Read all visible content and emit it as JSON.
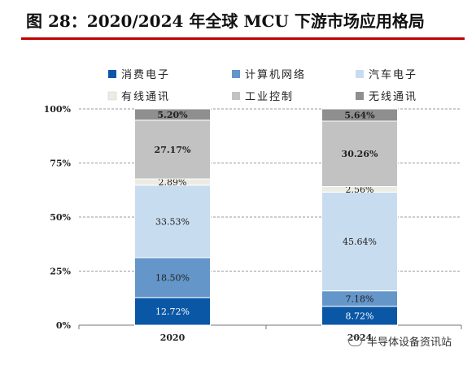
{
  "title": "图 28：2020/2024 年全球 MCU 下游市场应用格局",
  "watermark": "半导体设备资讯站",
  "chart_data": {
    "type": "bar",
    "stacked": true,
    "categories": [
      "2020",
      "2024"
    ],
    "ylim": [
      0,
      100
    ],
    "yticks": [
      "0%",
      "25%",
      "50%",
      "75%",
      "100%"
    ],
    "grid": true,
    "legend_position": "top",
    "series": [
      {
        "name": "消费电子",
        "values": [
          12.72,
          8.72
        ],
        "labels": [
          "12.72%",
          "8.72%"
        ],
        "color": "#0a57a6"
      },
      {
        "name": "计算机网络",
        "values": [
          18.5,
          7.18
        ],
        "labels": [
          "18.50%",
          "7.18%"
        ],
        "color": "#6496c9"
      },
      {
        "name": "汽车电子",
        "values": [
          33.53,
          45.64
        ],
        "labels": [
          "33.53%",
          "45.64%"
        ],
        "color": "#c8dcef"
      },
      {
        "name": "有线通讯",
        "values": [
          2.89,
          2.56
        ],
        "labels": [
          "2.89%",
          "2.56%"
        ],
        "color": "#ecece4"
      },
      {
        "name": "工业控制",
        "values": [
          27.17,
          30.26
        ],
        "labels": [
          "27.17%",
          "30.26%"
        ],
        "color": "#c2c2c2"
      },
      {
        "name": "无线通讯",
        "values": [
          5.2,
          5.64
        ],
        "labels": [
          "5.20%",
          "5.64%"
        ],
        "color": "#8f8f8f"
      }
    ]
  }
}
